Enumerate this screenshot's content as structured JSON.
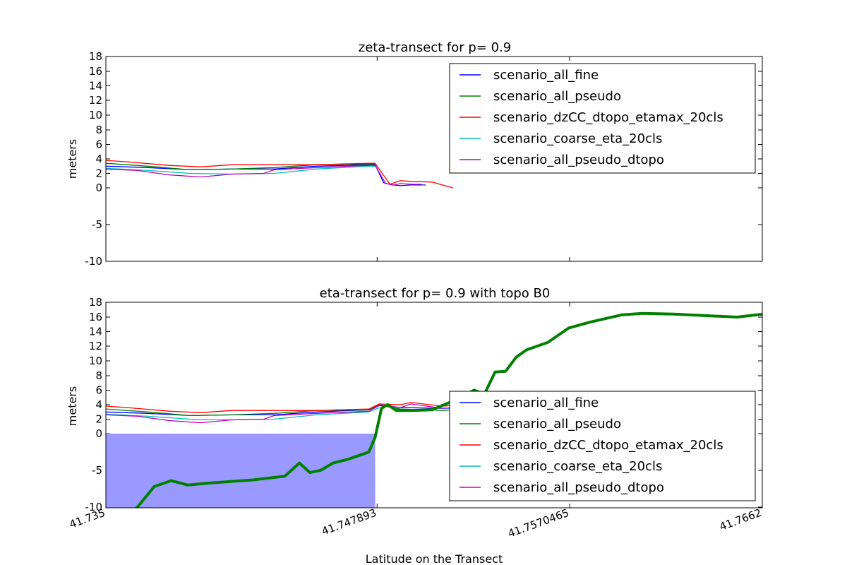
{
  "figure": {
    "xlabel": "Latitude on the Transect",
    "x_ticks": [
      "41.735",
      "41.747893",
      "41.7570465",
      "41.7662"
    ],
    "xlim": [
      41.735,
      41.7662
    ]
  },
  "legend_entries": [
    {
      "label": "scenario_all_fine",
      "color": "#0000ff"
    },
    {
      "label": "scenario_all_pseudo",
      "color": "#008000"
    },
    {
      "label": "scenario_dzCC_dtopo_etamax_20cls",
      "color": "#ff0000"
    },
    {
      "label": "scenario_coarse_eta_20cls",
      "color": "#00bfbf"
    },
    {
      "label": "scenario_all_pseudo_dtopo",
      "color": "#bf00bf"
    }
  ],
  "chart_data": [
    {
      "type": "line",
      "title": "zeta-transect for p= 0.9",
      "ylabel": "meters",
      "ylim": [
        -10,
        18
      ],
      "y_ticks": [
        -10,
        -5,
        0,
        2,
        4,
        6,
        8,
        10,
        12,
        14,
        16,
        18
      ],
      "legend_position": "upper-right",
      "series": [
        {
          "name": "scenario_all_fine",
          "color": "#0000ff",
          "x": [
            41.735,
            41.737,
            41.739,
            41.741,
            41.743,
            41.745,
            41.7475,
            41.7478,
            41.7482,
            41.7486,
            41.749,
            41.7495,
            41.7502
          ],
          "y": [
            3.0,
            2.8,
            2.5,
            2.6,
            2.6,
            3.0,
            3.2,
            3.2,
            0.7,
            0.4,
            0.3,
            0.4,
            0.4
          ]
        },
        {
          "name": "scenario_all_pseudo",
          "color": "#008000",
          "x": [
            41.735,
            41.737,
            41.739,
            41.741,
            41.743,
            41.745,
            41.7475,
            41.7478
          ],
          "y": [
            3.4,
            3.0,
            2.5,
            2.6,
            2.8,
            3.2,
            3.3,
            3.3
          ]
        },
        {
          "name": "scenario_dzCC_dtopo_etamax_20cls",
          "color": "#ff0000",
          "x": [
            41.735,
            41.736,
            41.738,
            41.7395,
            41.741,
            41.743,
            41.745,
            41.7475,
            41.7478,
            41.7485,
            41.749,
            41.7495,
            41.7505,
            41.7515
          ],
          "y": [
            3.8,
            3.6,
            3.1,
            2.9,
            3.2,
            3.2,
            3.2,
            3.4,
            3.4,
            0.5,
            1.0,
            0.9,
            0.8,
            0.0
          ]
        },
        {
          "name": "scenario_coarse_eta_20cls",
          "color": "#00bfbf",
          "x": [
            41.735,
            41.737,
            41.739,
            41.741,
            41.743,
            41.745,
            41.7475,
            41.7478
          ],
          "y": [
            2.7,
            2.4,
            2.0,
            1.9,
            2.0,
            2.6,
            3.0,
            3.0
          ]
        },
        {
          "name": "scenario_all_pseudo_dtopo",
          "color": "#bf00bf",
          "x": [
            41.735,
            41.7365,
            41.738,
            41.7395,
            41.741,
            41.7425,
            41.743,
            41.745,
            41.7475,
            41.7478,
            41.7483,
            41.7487,
            41.749,
            41.7495,
            41.75
          ],
          "y": [
            2.6,
            2.4,
            1.8,
            1.5,
            1.9,
            2.0,
            2.5,
            2.8,
            3.1,
            3.1,
            0.6,
            0.4,
            0.6,
            0.5,
            0.5
          ]
        }
      ]
    },
    {
      "type": "line",
      "title": "eta-transect for p= 0.9 with topo B0",
      "ylabel": "meters",
      "ylim": [
        -10,
        18
      ],
      "y_ticks": [
        -10,
        -5,
        0,
        2,
        4,
        6,
        8,
        10,
        12,
        14,
        16,
        18
      ],
      "legend_position": "lower-right",
      "fill": {
        "color": "#9999ff",
        "y_top": 0,
        "x_range": [
          41.735,
          41.7478
        ]
      },
      "topography": {
        "color": "#008000",
        "x": [
          41.735,
          41.7365,
          41.7373,
          41.7381,
          41.7389,
          41.74,
          41.742,
          41.7435,
          41.7442,
          41.7447,
          41.7452,
          41.7458,
          41.7465,
          41.7475,
          41.7478,
          41.7481,
          41.7484,
          41.7488,
          41.7495,
          41.7505,
          41.7515,
          41.7525,
          41.753,
          41.7535,
          41.754,
          41.7545,
          41.755,
          41.756,
          41.757,
          41.758,
          41.7595,
          41.7605,
          41.762,
          41.7635,
          41.765,
          41.7662
        ],
        "y": [
          -14,
          -10,
          -7.2,
          -6.4,
          -7.0,
          -6.7,
          -6.3,
          -5.8,
          -4.0,
          -5.3,
          -5.0,
          -4.0,
          -3.5,
          -2.5,
          -0.5,
          3.5,
          4.0,
          3.2,
          3.2,
          3.3,
          4.5,
          6.0,
          5.5,
          8.5,
          8.6,
          10.5,
          11.5,
          12.5,
          14.5,
          15.3,
          16.3,
          16.5,
          16.4,
          16.2,
          16.0,
          16.4
        ]
      },
      "series": [
        {
          "name": "scenario_all_fine",
          "color": "#0000ff",
          "x": [
            41.735,
            41.737,
            41.739,
            41.741,
            41.743,
            41.745,
            41.7475,
            41.748,
            41.749,
            41.751,
            41.7525
          ],
          "y": [
            3.0,
            2.8,
            2.5,
            2.6,
            2.6,
            3.0,
            3.3,
            4.0,
            3.6,
            3.5,
            3.6
          ]
        },
        {
          "name": "scenario_all_pseudo",
          "color": "#008000",
          "x": [
            41.735,
            41.737,
            41.739,
            41.741,
            41.743,
            41.745,
            41.7475,
            41.748,
            41.749,
            41.751,
            41.7525
          ],
          "y": [
            3.4,
            3.0,
            2.5,
            2.6,
            2.8,
            3.2,
            3.3,
            3.9,
            3.4,
            3.2,
            3.5
          ]
        },
        {
          "name": "scenario_dzCC_dtopo_etamax_20cls",
          "color": "#ff0000",
          "x": [
            41.735,
            41.736,
            41.738,
            41.7395,
            41.741,
            41.743,
            41.745,
            41.7475,
            41.748,
            41.749,
            41.7495,
            41.751,
            41.7525
          ],
          "y": [
            3.8,
            3.6,
            3.1,
            2.9,
            3.2,
            3.2,
            3.2,
            3.4,
            4.1,
            4.0,
            4.3,
            3.8,
            4.0
          ]
        },
        {
          "name": "scenario_coarse_eta_20cls",
          "color": "#00bfbf",
          "x": [
            41.735,
            41.737,
            41.739,
            41.741,
            41.743,
            41.745,
            41.7475,
            41.748
          ],
          "y": [
            2.7,
            2.4,
            2.0,
            1.9,
            2.0,
            2.6,
            3.0,
            3.6
          ]
        },
        {
          "name": "scenario_all_pseudo_dtopo",
          "color": "#bf00bf",
          "x": [
            41.735,
            41.7365,
            41.738,
            41.7395,
            41.741,
            41.7425,
            41.743,
            41.745,
            41.7475,
            41.748,
            41.749,
            41.7495,
            41.751
          ],
          "y": [
            2.6,
            2.4,
            1.8,
            1.5,
            1.9,
            2.0,
            2.5,
            2.8,
            3.1,
            3.9,
            3.6,
            4.1,
            3.5
          ]
        }
      ]
    }
  ]
}
